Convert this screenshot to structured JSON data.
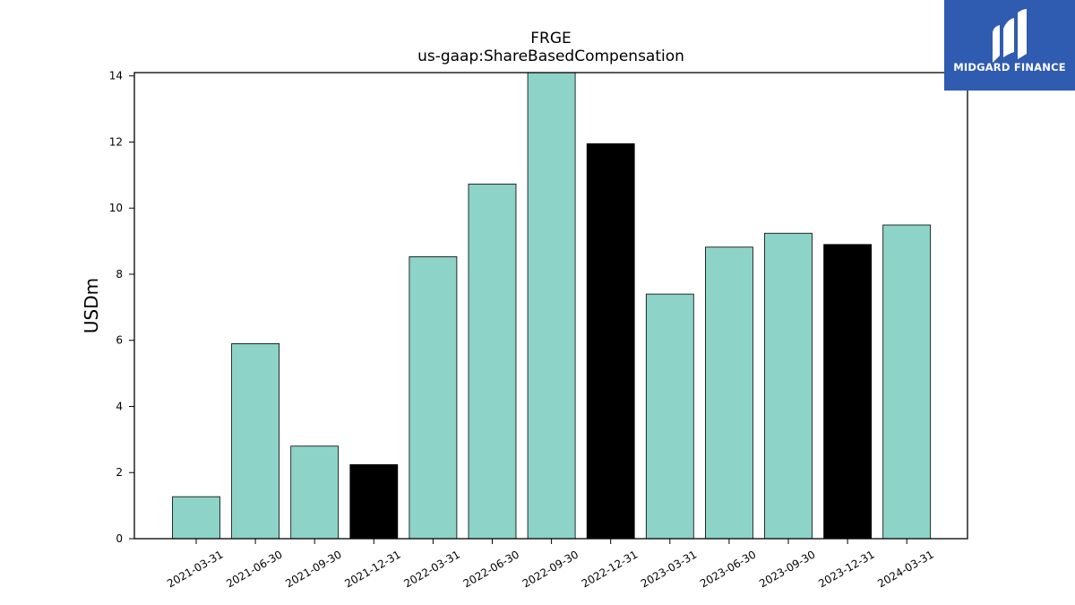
{
  "chart_data": {
    "type": "bar",
    "title": "FRGE",
    "subtitle": "us-gaap:ShareBasedCompensation",
    "xlabel": "",
    "ylabel": "USDm",
    "ylim": [
      0,
      14.1
    ],
    "yticks": [
      0,
      2,
      4,
      6,
      8,
      10,
      12,
      14
    ],
    "categories": [
      "2021-03-31",
      "2021-06-30",
      "2021-09-30",
      "2021-12-31",
      "2022-03-31",
      "2022-06-30",
      "2022-09-30",
      "2022-12-31",
      "2023-03-31",
      "2023-06-30",
      "2023-09-30",
      "2023-12-31",
      "2024-03-31"
    ],
    "values": [
      1.27,
      5.9,
      2.8,
      2.24,
      8.53,
      10.73,
      14.1,
      11.95,
      7.4,
      8.82,
      9.24,
      8.9,
      9.49
    ],
    "highlighted": [
      false,
      false,
      false,
      true,
      false,
      false,
      false,
      true,
      false,
      false,
      false,
      true,
      false
    ],
    "colors": {
      "bar": "#8dd3c7",
      "highlight": "#000000",
      "edge": "#000000"
    },
    "grid": false,
    "legend": "none"
  },
  "brand": {
    "name": "MIDGARD FINANCE",
    "background": "#2f5bb0"
  }
}
